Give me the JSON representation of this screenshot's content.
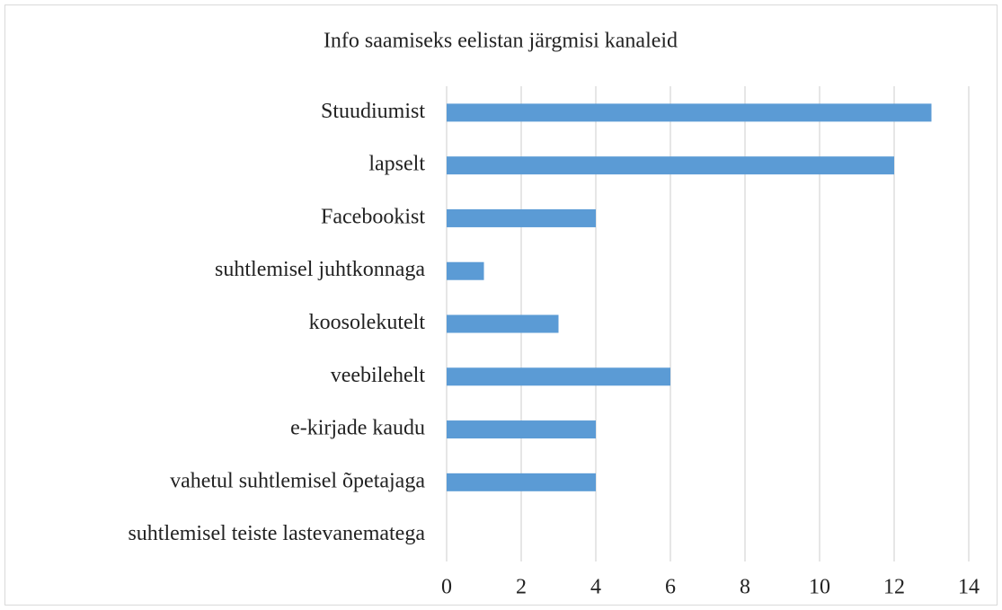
{
  "chart_data": {
    "type": "bar",
    "orientation": "horizontal",
    "title": "Info saamiseks eelistan järgmisi kanaleid",
    "categories": [
      "Stuudiumist",
      "lapselt",
      "Facebookist",
      "suhtlemisel juhtkonnaga",
      "koosolekutelt",
      "veebilehelt",
      "e-kirjade kaudu",
      "vahetul suhtlemisel õpetajaga",
      "suhtlemisel teiste lastevanematega"
    ],
    "values": [
      13,
      12,
      4,
      1,
      3,
      6,
      4,
      4,
      0
    ],
    "color": "#5b9bd5",
    "xlim": [
      0,
      14
    ],
    "xticks": [
      0,
      2,
      4,
      6,
      8,
      10,
      12,
      14
    ],
    "grid": true
  }
}
